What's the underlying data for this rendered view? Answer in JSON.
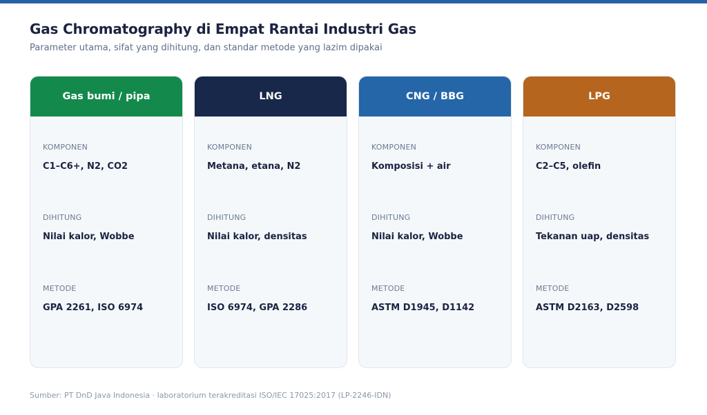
{
  "title": "Gas Chromatography di Empat Rantai Industri Gas",
  "subtitle": "Parameter utama, sifat yang dihitung, dan standar metode yang lazim dipakai",
  "colors": {
    "top_bar": "#2563a6",
    "gas_bumi": "#138a4b",
    "lng": "#17284a",
    "cng": "#2466a8",
    "lpg": "#b5651d"
  },
  "cards": [
    {
      "header": "Gas bumi / pipa",
      "komponen_label": "KOMPONEN",
      "komponen": "C1–C6+, N2, CO2",
      "dihitung_label": "DIHITUNG",
      "dihitung": "Nilai kalor, Wobbe",
      "metode_label": "METODE",
      "metode": "GPA 2261, ISO 6974"
    },
    {
      "header": "LNG",
      "komponen_label": "KOMPONEN",
      "komponen": "Metana, etana, N2",
      "dihitung_label": "DIHITUNG",
      "dihitung": "Nilai kalor, densitas",
      "metode_label": "METODE",
      "metode": "ISO 6974, GPA 2286"
    },
    {
      "header": "CNG / BBG",
      "komponen_label": "KOMPONEN",
      "komponen": "Komposisi + air",
      "dihitung_label": "DIHITUNG",
      "dihitung": "Nilai kalor, Wobbe",
      "metode_label": "METODE",
      "metode": "ASTM D1945, D1142"
    },
    {
      "header": "LPG",
      "komponen_label": "KOMPONEN",
      "komponen": "C2–C5, olefin",
      "dihitung_label": "DIHITUNG",
      "dihitung": "Tekanan uap, densitas",
      "metode_label": "METODE",
      "metode": "ASTM D2163, D2598"
    }
  ],
  "footer": "Sumber: PT DnD Java Indonesia · laboratorium terakreditasi ISO/IEC 17025:2017 (LP-2246-IDN)"
}
